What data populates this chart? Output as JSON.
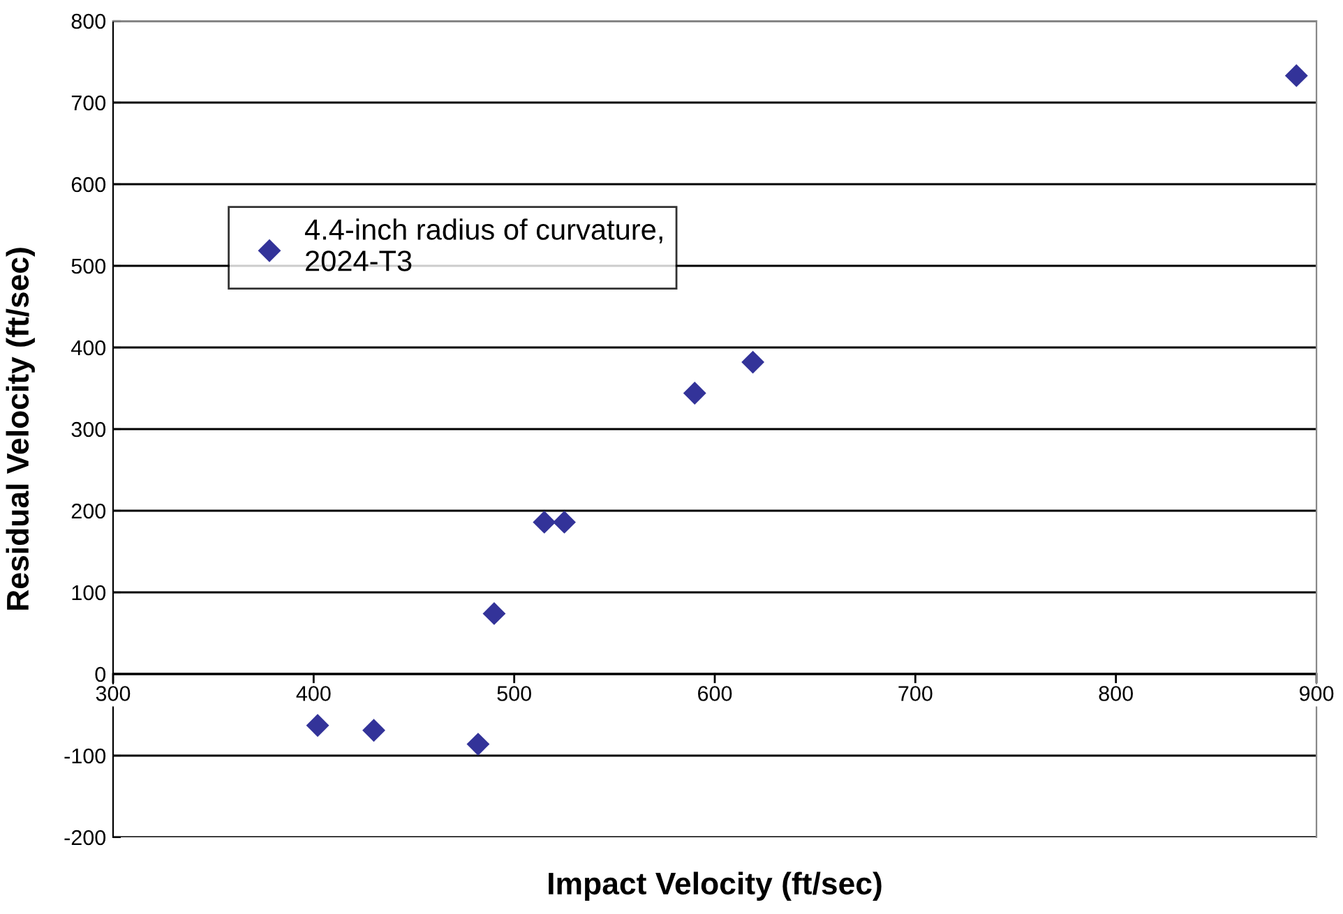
{
  "chart_data": {
    "type": "scatter",
    "xlabel": "Impact Velocity (ft/sec)",
    "ylabel": "Residual Velocity (ft/sec)",
    "series": [
      {
        "name": "4.4-inch radius of curvature,\n2024-T3",
        "color": "#333399",
        "x": [
          402,
          430,
          482,
          490,
          515,
          525,
          590,
          619,
          890
        ],
        "values": [
          -63,
          -69,
          -86,
          74,
          186,
          186,
          344,
          382,
          733
        ]
      }
    ],
    "xlim": [
      300,
      900
    ],
    "xticks": [
      300,
      400,
      500,
      600,
      700,
      800,
      900
    ],
    "ylim": [
      -200,
      800
    ],
    "yticks": [
      -200,
      -100,
      0,
      100,
      200,
      300,
      400,
      500,
      600,
      700,
      800
    ],
    "grid": "y",
    "legend": "upper left",
    "marker": "diamond"
  }
}
